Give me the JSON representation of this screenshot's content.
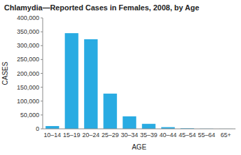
{
  "chart_data": {
    "type": "bar",
    "title": "Chlamydia—Reported Cases in Females, 2008, by Age",
    "xlabel": "AGE",
    "ylabel": "CASES",
    "categories": [
      "10–14",
      "15–19",
      "20–24",
      "25–29",
      "30–34",
      "35–39",
      "40–44",
      "45–54",
      "55–64",
      "65+"
    ],
    "values": [
      10000,
      345000,
      323000,
      127000,
      45000,
      18000,
      6000,
      2000,
      500,
      200
    ],
    "color": "#29ABE2",
    "ylim": [
      0,
      400000
    ],
    "yticks": [
      0,
      {
        "value": 50000,
        "label": "50,000"
      },
      {
        "value": 100000,
        "label": "100,000"
      },
      {
        "value": 150000,
        "label": "150,000"
      },
      {
        "value": 200000,
        "label": "200,000"
      },
      {
        "value": 250000,
        "label": "250,000"
      },
      {
        "value": 300000,
        "label": "300,000"
      },
      {
        "value": 350000,
        "label": "350,000"
      },
      {
        "value": 400000,
        "label": "400,000"
      }
    ],
    "grid": false
  }
}
